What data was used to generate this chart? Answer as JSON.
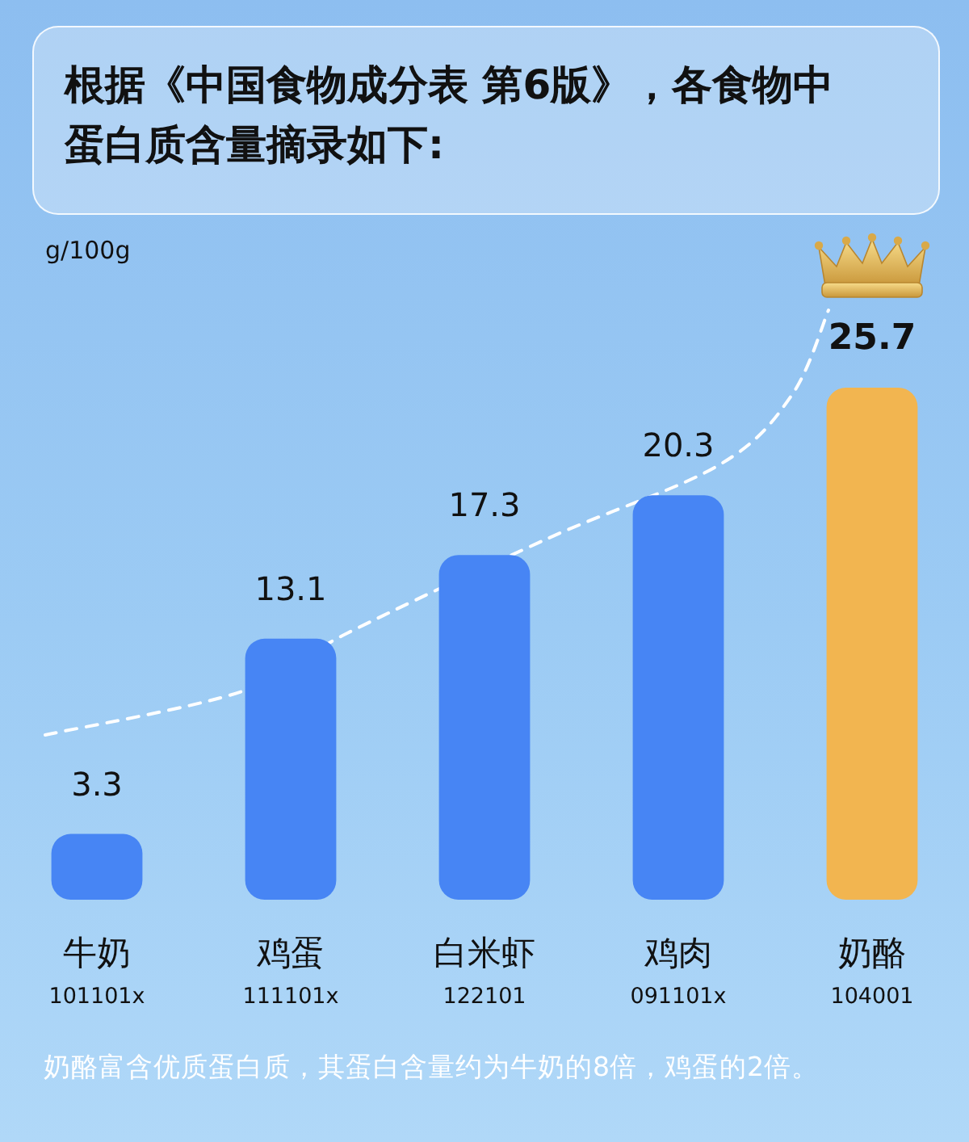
{
  "chart_data": {
    "type": "bar",
    "title": "根据《中国食物成分表 第6版》，各食物中蛋白质含量摘录如下:",
    "categories": [
      "牛奶\n101101x",
      "鸡蛋\n111101x",
      "白米虾\n122101",
      "鸡肉\n091101x",
      "奶酪\n104001"
    ],
    "values": [
      3.3,
      13.1,
      17.3,
      20.3,
      25.7
    ],
    "colors": [
      "#4785f4",
      "#4785f4",
      "#4785f4",
      "#4785f4",
      "#f2b550"
    ],
    "data_labels": true,
    "tick_labels": "x",
    "annotations": [
      "g/100g",
      "奶酪富含优质蛋白质，其蛋白含量约为牛奶的8倍，鸡蛋的2倍。"
    ]
  }
}
